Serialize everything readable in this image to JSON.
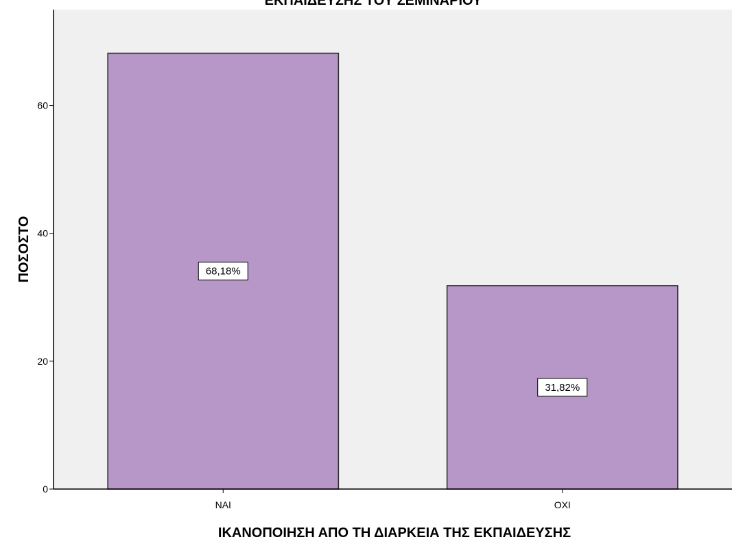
{
  "chart_data": {
    "type": "bar",
    "title": "ΕΚΠΑΙΔΕΥΣΗΣ ΤΟΥ ΣΕΜΙΝΑΡΙΟΥ",
    "xlabel": "ΙΚΑΝΟΠΟΙΗΣΗ ΑΠΟ ΤΗ ΔΙΑΡΚΕΙΑ ΤΗΣ ΕΚΠΑΙΔΕΥΣΗΣ",
    "ylabel": "ΠΟΣΟΣΤΟ",
    "categories": [
      "ΝΑΙ",
      "ΟΧΙ"
    ],
    "values": [
      68.18,
      31.82
    ],
    "data_labels": [
      "68,18%",
      "31,82%"
    ],
    "ylim": [
      0,
      75
    ],
    "yticks": [
      0,
      20,
      40,
      60
    ],
    "grid": false,
    "colors": {
      "bar_fill": "#b797c8",
      "bar_stroke": "#2b2b2b",
      "plot_background": "#f0f0f0",
      "axis": "#000000"
    }
  }
}
